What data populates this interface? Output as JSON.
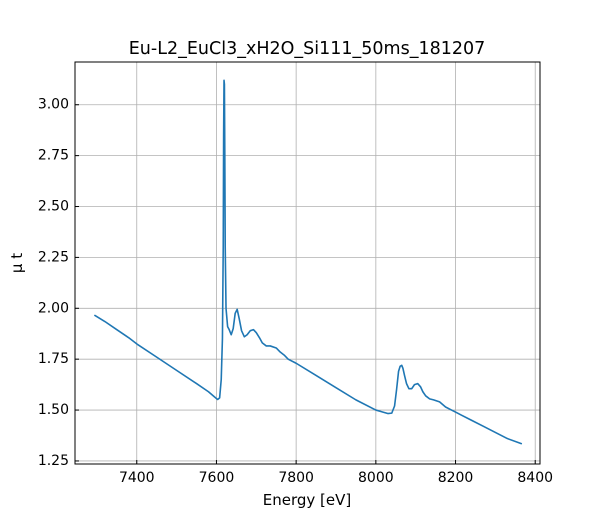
{
  "chart_data": {
    "type": "line",
    "title": "Eu-L2_EuCl3_xH2O_Si111_50ms_181207",
    "xlabel": "Energy [eV]",
    "ylabel": "μ t",
    "xlim": [
      7245,
      8412
    ],
    "ylim": [
      1.235,
      3.21
    ],
    "xticks": [
      7400,
      7600,
      7800,
      8000,
      8200,
      8400
    ],
    "xtick_labels": [
      "7400",
      "7600",
      "7800",
      "8000",
      "8200",
      "8400"
    ],
    "yticks": [
      1.25,
      1.5,
      1.75,
      2.0,
      2.25,
      2.5,
      2.75,
      3.0
    ],
    "ytick_labels": [
      "1.25",
      "1.50",
      "1.75",
      "2.00",
      "2.25",
      "2.50",
      "2.75",
      "3.00"
    ],
    "grid": true,
    "tick_direction": "in",
    "series": [
      {
        "color": "#1f77b4",
        "x": [
          7295,
          7320,
          7350,
          7380,
          7400,
          7450,
          7500,
          7550,
          7580,
          7595,
          7603,
          7608,
          7612,
          7615,
          7617,
          7618,
          7619,
          7620,
          7621,
          7622,
          7624,
          7628,
          7632,
          7637,
          7642,
          7647,
          7652,
          7657,
          7663,
          7670,
          7677,
          7685,
          7693,
          7700,
          7708,
          7715,
          7725,
          7735,
          7750,
          7760,
          7770,
          7780,
          7800,
          7850,
          7900,
          7950,
          8000,
          8030,
          8040,
          8047,
          8052,
          8057,
          8061,
          8065,
          8068,
          8072,
          8077,
          8083,
          8090,
          8097,
          8105,
          8112,
          8118,
          8125,
          8135,
          8145,
          8160,
          8175,
          8190,
          8200,
          8215,
          8240,
          8270,
          8300,
          8330,
          8365
        ],
        "y": [
          1.965,
          1.935,
          1.895,
          1.855,
          1.825,
          1.76,
          1.695,
          1.63,
          1.59,
          1.565,
          1.552,
          1.56,
          1.65,
          1.85,
          2.3,
          2.85,
          3.12,
          3.1,
          2.75,
          2.3,
          2.0,
          1.91,
          1.895,
          1.87,
          1.9,
          1.975,
          1.995,
          1.95,
          1.89,
          1.86,
          1.87,
          1.89,
          1.895,
          1.88,
          1.855,
          1.83,
          1.815,
          1.815,
          1.805,
          1.785,
          1.77,
          1.75,
          1.73,
          1.67,
          1.61,
          1.55,
          1.5,
          1.483,
          1.485,
          1.52,
          1.6,
          1.69,
          1.715,
          1.72,
          1.705,
          1.67,
          1.63,
          1.605,
          1.605,
          1.625,
          1.63,
          1.615,
          1.59,
          1.57,
          1.555,
          1.55,
          1.54,
          1.515,
          1.5,
          1.49,
          1.475,
          1.45,
          1.42,
          1.39,
          1.36,
          1.335
        ]
      }
    ]
  }
}
